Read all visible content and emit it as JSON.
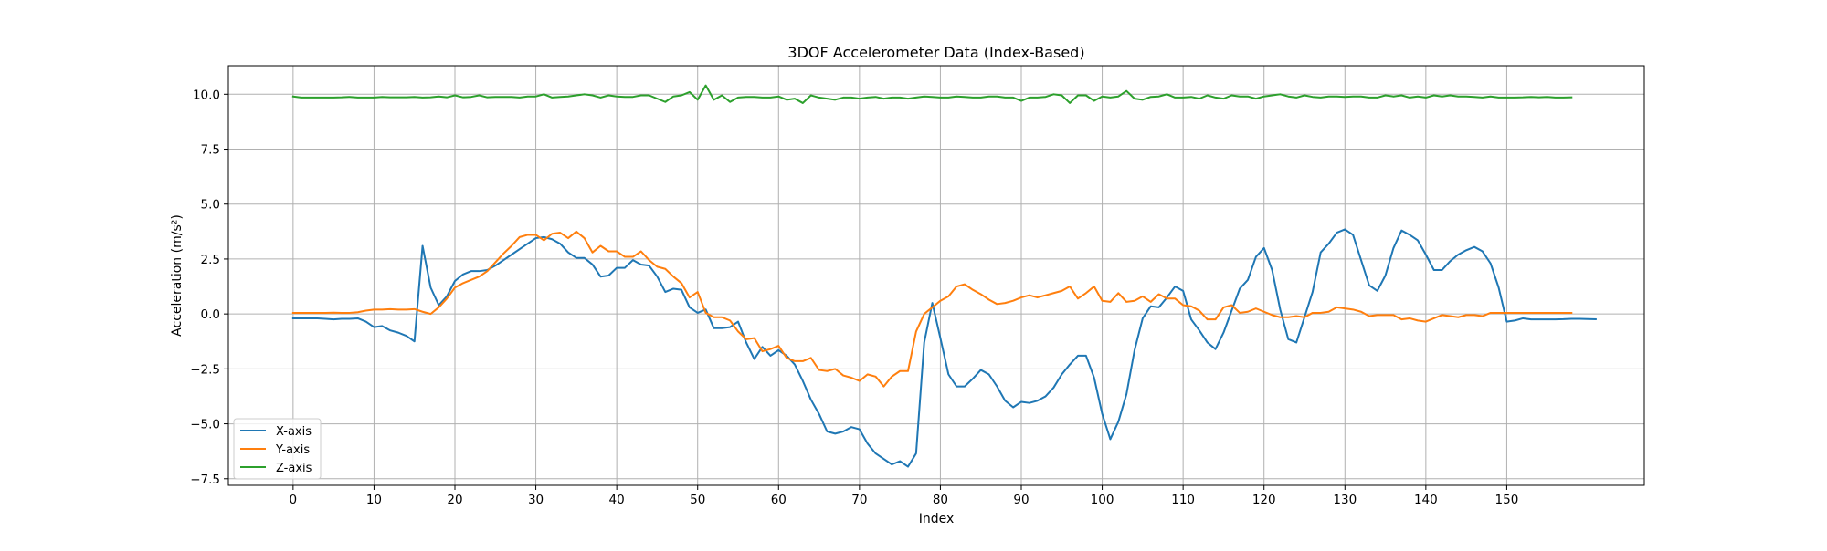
{
  "chart_data": {
    "type": "line",
    "title": "3DOF Accelerometer Data (Index-Based)",
    "xlabel": "Index",
    "ylabel": "Acceleration (m/s²)",
    "xlim": [
      -8,
      167
    ],
    "ylim": [
      -7.8,
      11.3
    ],
    "xticks": [
      0,
      10,
      20,
      30,
      40,
      50,
      60,
      70,
      80,
      90,
      100,
      110,
      120,
      130,
      140,
      150
    ],
    "xtick_labels": [
      "0",
      "10",
      "20",
      "30",
      "40",
      "50",
      "60",
      "70",
      "80",
      "90",
      "100",
      "110",
      "120",
      "130",
      "140",
      "150"
    ],
    "yticks": [
      -7.5,
      -5.0,
      -2.5,
      0.0,
      2.5,
      5.0,
      7.5,
      10.0
    ],
    "ytick_labels": [
      "−7.5",
      "−5.0",
      "−2.5",
      "0.0",
      "2.5",
      "5.0",
      "7.5",
      "10.0"
    ],
    "grid": true,
    "legend_position": "lower-left",
    "series": [
      {
        "name": "X-axis",
        "color": "#1f77b4",
        "values": [
          -0.2,
          -0.2,
          -0.2,
          -0.2,
          -0.22,
          -0.25,
          -0.22,
          -0.22,
          -0.2,
          -0.35,
          -0.6,
          -0.55,
          -0.75,
          -0.85,
          -1.0,
          -1.25,
          3.1,
          1.2,
          0.4,
          0.8,
          1.5,
          1.8,
          1.95,
          1.95,
          2.0,
          2.2,
          2.45,
          2.7,
          2.95,
          3.2,
          3.45,
          3.5,
          3.4,
          3.2,
          2.8,
          2.55,
          2.55,
          2.25,
          1.7,
          1.75,
          2.1,
          2.1,
          2.45,
          2.25,
          2.2,
          1.7,
          1.0,
          1.15,
          1.1,
          0.3,
          0.05,
          0.2,
          -0.65,
          -0.65,
          -0.6,
          -0.35,
          -1.3,
          -2.05,
          -1.5,
          -1.9,
          -1.65,
          -1.9,
          -2.3,
          -3.05,
          -3.9,
          -4.55,
          -5.35,
          -5.45,
          -5.35,
          -5.15,
          -5.25,
          -5.9,
          -6.35,
          -6.6,
          -6.85,
          -6.7,
          -6.95,
          -6.35,
          -1.3,
          0.5,
          -1.1,
          -2.75,
          -3.3,
          -3.3,
          -2.95,
          -2.55,
          -2.75,
          -3.3,
          -3.95,
          -4.25,
          -4.0,
          -4.05,
          -3.95,
          -3.75,
          -3.35,
          -2.75,
          -2.3,
          -1.9,
          -1.9,
          -2.9,
          -4.55,
          -5.7,
          -4.9,
          -3.65,
          -1.65,
          -0.2,
          0.35,
          0.3,
          0.75,
          1.25,
          1.05,
          -0.25,
          -0.75,
          -1.3,
          -1.6,
          -0.85,
          0.15,
          1.15,
          1.55,
          2.6,
          3.0,
          2.0,
          0.2,
          -1.15,
          -1.3,
          -0.15,
          1.0,
          2.8,
          3.2,
          3.7,
          3.85,
          3.6,
          2.45,
          1.3,
          1.05,
          1.75,
          3.0,
          3.8,
          3.6,
          3.35,
          2.7,
          2.0,
          2.0,
          2.4,
          2.7,
          2.9,
          3.05,
          2.85,
          2.3,
          1.2,
          -0.35,
          -0.3,
          -0.2,
          -0.25,
          -0.25,
          -0.25,
          -0.25,
          -0.24,
          -0.22,
          -0.22,
          -0.23,
          -0.24
        ]
      },
      {
        "name": "Y-axis",
        "color": "#ff7f0e",
        "values": [
          0.05,
          0.05,
          0.05,
          0.05,
          0.05,
          0.06,
          0.05,
          0.05,
          0.08,
          0.15,
          0.2,
          0.2,
          0.22,
          0.2,
          0.2,
          0.22,
          0.1,
          0.0,
          0.3,
          0.7,
          1.2,
          1.4,
          1.55,
          1.7,
          1.95,
          2.35,
          2.75,
          3.1,
          3.5,
          3.6,
          3.6,
          3.35,
          3.65,
          3.7,
          3.45,
          3.75,
          3.45,
          2.8,
          3.1,
          2.85,
          2.85,
          2.6,
          2.6,
          2.85,
          2.45,
          2.15,
          2.05,
          1.7,
          1.4,
          0.75,
          1.0,
          0.05,
          -0.15,
          -0.15,
          -0.3,
          -0.8,
          -1.15,
          -1.1,
          -1.7,
          -1.6,
          -1.45,
          -2.0,
          -2.15,
          -2.15,
          -2.0,
          -2.55,
          -2.6,
          -2.5,
          -2.8,
          -2.9,
          -3.05,
          -2.75,
          -2.85,
          -3.3,
          -2.85,
          -2.6,
          -2.6,
          -0.8,
          0.0,
          0.3,
          0.6,
          0.8,
          1.25,
          1.35,
          1.1,
          0.9,
          0.65,
          0.45,
          0.5,
          0.6,
          0.75,
          0.85,
          0.75,
          0.85,
          0.95,
          1.05,
          1.25,
          0.7,
          0.95,
          1.25,
          0.6,
          0.55,
          0.95,
          0.55,
          0.6,
          0.8,
          0.55,
          0.9,
          0.7,
          0.7,
          0.4,
          0.35,
          0.15,
          -0.25,
          -0.25,
          0.3,
          0.4,
          0.05,
          0.1,
          0.25,
          0.1,
          -0.05,
          -0.15,
          -0.15,
          -0.1,
          -0.15,
          0.05,
          0.05,
          0.1,
          0.3,
          0.25,
          0.2,
          0.1,
          -0.1,
          -0.05,
          -0.05,
          -0.05,
          -0.25,
          -0.2,
          -0.3,
          -0.35,
          -0.2,
          -0.05,
          -0.1,
          -0.15,
          -0.05,
          -0.05,
          -0.1,
          0.05,
          0.05,
          0.05,
          0.05,
          0.05,
          0.05,
          0.05,
          0.05,
          0.05,
          0.05,
          0.05
        ]
      },
      {
        "name": "Z-axis",
        "color": "#2ca02c",
        "values": [
          9.9,
          9.85,
          9.85,
          9.85,
          9.85,
          9.85,
          9.86,
          9.88,
          9.85,
          9.85,
          9.85,
          9.88,
          9.86,
          9.86,
          9.86,
          9.88,
          9.85,
          9.86,
          9.9,
          9.86,
          9.95,
          9.86,
          9.88,
          9.95,
          9.86,
          9.88,
          9.88,
          9.88,
          9.85,
          9.9,
          9.9,
          10.0,
          9.85,
          9.88,
          9.9,
          9.95,
          10.0,
          9.95,
          9.85,
          9.95,
          9.9,
          9.88,
          9.88,
          9.95,
          9.95,
          9.8,
          9.65,
          9.9,
          9.95,
          10.1,
          9.75,
          10.4,
          9.75,
          9.95,
          9.65,
          9.85,
          9.88,
          9.88,
          9.85,
          9.85,
          9.9,
          9.75,
          9.8,
          9.6,
          9.95,
          9.85,
          9.8,
          9.75,
          9.85,
          9.85,
          9.8,
          9.85,
          9.88,
          9.8,
          9.85,
          9.85,
          9.8,
          9.85,
          9.9,
          9.88,
          9.85,
          9.85,
          9.9,
          9.88,
          9.85,
          9.85,
          9.9,
          9.9,
          9.85,
          9.85,
          9.7,
          9.85,
          9.85,
          9.88,
          10.0,
          9.95,
          9.6,
          9.95,
          9.95,
          9.7,
          9.9,
          9.85,
          9.9,
          10.15,
          9.8,
          9.75,
          9.88,
          9.9,
          10.0,
          9.85,
          9.85,
          9.88,
          9.8,
          9.95,
          9.85,
          9.8,
          9.95,
          9.9,
          9.9,
          9.8,
          9.9,
          9.95,
          10.0,
          9.9,
          9.85,
          9.95,
          9.88,
          9.85,
          9.9,
          9.9,
          9.88,
          9.9,
          9.9,
          9.85,
          9.85,
          9.95,
          9.9,
          9.95,
          9.85,
          9.9,
          9.85,
          9.95,
          9.9,
          9.95,
          9.9,
          9.9,
          9.88,
          9.85,
          9.9,
          9.85,
          9.85,
          9.85,
          9.86,
          9.88,
          9.86,
          9.88,
          9.85,
          9.85,
          9.86
        ]
      }
    ]
  }
}
